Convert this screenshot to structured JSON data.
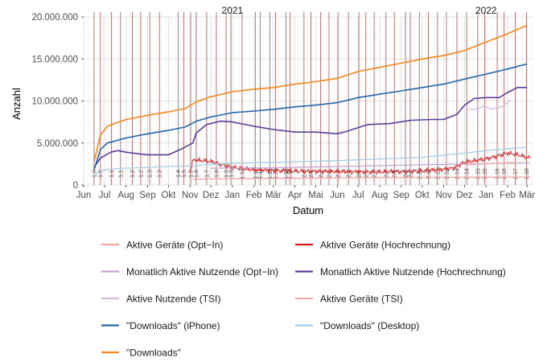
{
  "chart_data": {
    "type": "line",
    "xlabel": "Datum",
    "ylabel": "Anzahl",
    "ylim": [
      0,
      20000000
    ],
    "y_ticks": [
      0,
      5000000,
      10000000,
      15000000,
      20000000
    ],
    "y_tick_labels": [
      "0",
      "5.000.000",
      "10.000.000",
      "15.000.000",
      "20.000.000"
    ],
    "x_range": [
      "2020-06-01",
      "2022-03-10"
    ],
    "x_ticks": [
      {
        "date": "2020-06-01",
        "label": "Jun"
      },
      {
        "date": "2020-07-01",
        "label": "Jul"
      },
      {
        "date": "2020-08-01",
        "label": "Aug"
      },
      {
        "date": "2020-09-01",
        "label": "Sep"
      },
      {
        "date": "2020-10-01",
        "label": "Okt"
      },
      {
        "date": "2020-11-01",
        "label": "Nov"
      },
      {
        "date": "2020-12-01",
        "label": "Dez"
      },
      {
        "date": "2021-01-01",
        "label": "Jan"
      },
      {
        "date": "2021-02-01",
        "label": "Feb"
      },
      {
        "date": "2021-03-01",
        "label": "Mär"
      },
      {
        "date": "2021-04-01",
        "label": "Apr"
      },
      {
        "date": "2021-05-01",
        "label": "Mai"
      },
      {
        "date": "2021-06-01",
        "label": "Jun"
      },
      {
        "date": "2021-07-01",
        "label": "Jul"
      },
      {
        "date": "2021-08-01",
        "label": "Aug"
      },
      {
        "date": "2021-09-01",
        "label": "Sep"
      },
      {
        "date": "2021-10-01",
        "label": "Okt"
      },
      {
        "date": "2021-11-01",
        "label": "Nov"
      },
      {
        "date": "2021-12-01",
        "label": "Dez"
      },
      {
        "date": "2022-01-01",
        "label": "Jan"
      },
      {
        "date": "2022-02-01",
        "label": "Feb"
      },
      {
        "date": "2022-03-01",
        "label": "Mär"
      }
    ],
    "year_labels": [
      {
        "date": "2021-01-01",
        "label": "2021"
      },
      {
        "date": "2022-01-01",
        "label": "2022"
      }
    ],
    "grid": true,
    "legend_position": "bottom",
    "release_markers": [
      {
        "date": "2020-06-16",
        "label": "1.0"
      },
      {
        "date": "2020-06-25",
        "label": "1.0"
      },
      {
        "date": "2020-07-11",
        "label": "1.1"
      },
      {
        "date": "2020-07-24",
        "label": "1.1"
      },
      {
        "date": "2020-08-10",
        "label": "1.2"
      },
      {
        "date": "2020-08-22",
        "label": "1.2"
      },
      {
        "date": "2020-09-04",
        "label": "1.3"
      },
      {
        "date": "2020-09-18",
        "label": "1.3"
      },
      {
        "date": "2020-10-15",
        "label": "1.4"
      },
      {
        "date": "2020-10-23",
        "label": "1.5"
      },
      {
        "date": "2020-11-02",
        "label": "1.5"
      },
      {
        "date": "2020-11-10",
        "label": "1.6"
      },
      {
        "date": "2020-11-25",
        "label": "1.7"
      },
      {
        "date": "2020-12-09",
        "label": "1.8"
      },
      {
        "date": "2020-12-23",
        "label": "1.9"
      },
      {
        "date": "2020-12-30",
        "label": "1.9"
      },
      {
        "date": "2021-01-15",
        "label": "1.10"
      },
      {
        "date": "2021-02-03",
        "label": "1.11"
      },
      {
        "date": "2021-02-10",
        "label": "1.11"
      },
      {
        "date": "2021-02-24",
        "label": "1.12"
      },
      {
        "date": "2021-03-04",
        "label": "1.13"
      },
      {
        "date": "2021-03-19",
        "label": "1.14"
      },
      {
        "date": "2021-03-25",
        "label": "1.15"
      },
      {
        "date": "2021-04-14",
        "label": "2.0"
      },
      {
        "date": "2021-04-24",
        "label": "2.1"
      },
      {
        "date": "2021-05-08",
        "label": "2.2"
      },
      {
        "date": "2021-05-20",
        "label": "2.2"
      },
      {
        "date": "2021-06-02",
        "label": "2.3"
      },
      {
        "date": "2021-06-17",
        "label": "2.4"
      },
      {
        "date": "2021-07-02",
        "label": "2.4"
      },
      {
        "date": "2021-07-12",
        "label": "2.5"
      },
      {
        "date": "2021-07-24",
        "label": "2.6"
      },
      {
        "date": "2021-08-10",
        "label": "2.7"
      },
      {
        "date": "2021-08-22",
        "label": "2.8"
      },
      {
        "date": "2021-09-07",
        "label": "2.9"
      },
      {
        "date": "2021-09-14",
        "label": "2.9"
      },
      {
        "date": "2021-09-27",
        "label": "2.10"
      },
      {
        "date": "2021-10-10",
        "label": "2.11"
      },
      {
        "date": "2021-10-23",
        "label": "2.12"
      },
      {
        "date": "2021-11-05",
        "label": "2.13"
      },
      {
        "date": "2021-11-20",
        "label": "2.14"
      },
      {
        "date": "2021-12-04",
        "label": "2.14"
      },
      {
        "date": "2021-12-20",
        "label": "2.15"
      },
      {
        "date": "2021-12-30",
        "label": "2.15"
      },
      {
        "date": "2022-01-17",
        "label": "2.16"
      },
      {
        "date": "2022-01-27",
        "label": "2.16"
      },
      {
        "date": "2022-02-12",
        "label": "2.17"
      },
      {
        "date": "2022-02-28",
        "label": "2.18"
      }
    ],
    "series": [
      {
        "name": "Aktive Geräte (Opt−In)",
        "color": "#f4a3a8",
        "legend_col": 0,
        "legend_row": 0,
        "points": [
          [
            "2020-11-05",
            700000
          ],
          [
            "2021-01-01",
            750000
          ],
          [
            "2021-06-01",
            850000
          ],
          [
            "2021-10-01",
            900000
          ],
          [
            "2022-03-05",
            950000
          ]
        ]
      },
      {
        "name": "Aktive Geräte (Hochrechnung)",
        "color": "#d7191c",
        "legend_col": 1,
        "legend_row": 0,
        "noise": true,
        "points": [
          [
            "2020-11-01",
            1700000
          ],
          [
            "2020-11-06",
            3000000
          ],
          [
            "2020-12-01",
            2800000
          ],
          [
            "2021-01-01",
            2100000
          ],
          [
            "2021-02-01",
            1800000
          ],
          [
            "2021-04-01",
            1650000
          ],
          [
            "2021-06-01",
            1600000
          ],
          [
            "2021-08-01",
            1550000
          ],
          [
            "2021-10-01",
            1650000
          ],
          [
            "2021-11-15",
            2000000
          ],
          [
            "2021-12-01",
            2700000
          ],
          [
            "2022-01-01",
            3100000
          ],
          [
            "2022-02-01",
            3800000
          ],
          [
            "2022-02-15",
            3600000
          ],
          [
            "2022-03-05",
            3200000
          ]
        ]
      },
      {
        "name": "Monatlich Aktive Nutzende (Opt−In)",
        "color": "#c2a5cf",
        "legend_col": 0,
        "legend_row": 1,
        "points": [
          [
            "2020-12-01",
            2000000
          ],
          [
            "2021-03-01",
            2050000
          ],
          [
            "2021-06-01",
            2200000
          ],
          [
            "2021-09-01",
            2350000
          ],
          [
            "2021-12-01",
            2500000
          ],
          [
            "2022-03-05",
            2650000
          ]
        ]
      },
      {
        "name": "Monatlich Aktive Nutzende (Hochrechnung)",
        "color": "#5e3c99",
        "legend_col": 1,
        "legend_row": 1,
        "points": [
          [
            "2020-06-16",
            2100000
          ],
          [
            "2020-06-25",
            3200000
          ],
          [
            "2020-07-10",
            3900000
          ],
          [
            "2020-07-20",
            4100000
          ],
          [
            "2020-08-01",
            3900000
          ],
          [
            "2020-08-20",
            3700000
          ],
          [
            "2020-09-01",
            3600000
          ],
          [
            "2020-10-01",
            3600000
          ],
          [
            "2020-10-20",
            4300000
          ],
          [
            "2020-11-05",
            5000000
          ],
          [
            "2020-11-10",
            6200000
          ],
          [
            "2020-11-25",
            7200000
          ],
          [
            "2020-12-15",
            7600000
          ],
          [
            "2021-01-01",
            7500000
          ],
          [
            "2021-02-01",
            7000000
          ],
          [
            "2021-03-01",
            6600000
          ],
          [
            "2021-04-01",
            6300000
          ],
          [
            "2021-05-01",
            6300000
          ],
          [
            "2021-06-01",
            6100000
          ],
          [
            "2021-06-15",
            6400000
          ],
          [
            "2021-07-15",
            7200000
          ],
          [
            "2021-08-15",
            7300000
          ],
          [
            "2021-09-15",
            7700000
          ],
          [
            "2021-10-15",
            7800000
          ],
          [
            "2021-11-01",
            7800000
          ],
          [
            "2021-11-20",
            8400000
          ],
          [
            "2021-12-01",
            9500000
          ],
          [
            "2021-12-15",
            10300000
          ],
          [
            "2022-01-01",
            10400000
          ],
          [
            "2022-01-20",
            10400000
          ],
          [
            "2022-02-01",
            11000000
          ],
          [
            "2022-02-15",
            11600000
          ],
          [
            "2022-03-01",
            11600000
          ]
        ]
      },
      {
        "name": "Aktive Nutzende (TSI)",
        "color": "#d8b8e0",
        "legend_col": 0,
        "legend_row": 2,
        "points": [
          [
            "2021-12-05",
            9000000
          ],
          [
            "2021-12-20",
            9000000
          ],
          [
            "2021-12-28",
            9400000
          ],
          [
            "2022-01-10",
            9000000
          ],
          [
            "2022-01-25",
            9400000
          ],
          [
            "2022-02-05",
            10100000
          ]
        ]
      },
      {
        "name": "Aktive Geräte (TSI)",
        "color": "#f6a9a9",
        "legend_col": 1,
        "legend_row": 2,
        "points": [
          [
            "2021-12-05",
            2400000
          ],
          [
            "2021-12-25",
            2500000
          ],
          [
            "2022-01-20",
            2600000
          ],
          [
            "2022-02-10",
            2700000
          ]
        ]
      },
      {
        "name": "\"Downloads\" (iPhone)",
        "color": "#2166ac",
        "legend_col": 0,
        "legend_row": 3,
        "points": [
          [
            "2020-06-16",
            1800000
          ],
          [
            "2020-06-25",
            4200000
          ],
          [
            "2020-07-05",
            5000000
          ],
          [
            "2020-08-01",
            5600000
          ],
          [
            "2020-09-01",
            6100000
          ],
          [
            "2020-10-01",
            6500000
          ],
          [
            "2020-10-25",
            6900000
          ],
          [
            "2020-11-10",
            7600000
          ],
          [
            "2020-12-01",
            8100000
          ],
          [
            "2021-01-01",
            8600000
          ],
          [
            "2021-02-01",
            8800000
          ],
          [
            "2021-03-01",
            9000000
          ],
          [
            "2021-04-01",
            9300000
          ],
          [
            "2021-05-01",
            9500000
          ],
          [
            "2021-06-01",
            9800000
          ],
          [
            "2021-07-01",
            10400000
          ],
          [
            "2021-08-01",
            10800000
          ],
          [
            "2021-09-01",
            11200000
          ],
          [
            "2021-10-01",
            11600000
          ],
          [
            "2021-11-01",
            12000000
          ],
          [
            "2021-12-01",
            12600000
          ],
          [
            "2022-01-01",
            13200000
          ],
          [
            "2022-02-01",
            13800000
          ],
          [
            "2022-03-01",
            14400000
          ]
        ]
      },
      {
        "name": "\"Downloads\" (Desktop)",
        "color": "#a6cee3",
        "legend_col": 1,
        "legend_row": 3,
        "points": [
          [
            "2020-06-16",
            1000000
          ],
          [
            "2020-06-25",
            1700000
          ],
          [
            "2020-07-10",
            1900000
          ],
          [
            "2020-08-01",
            2000000
          ],
          [
            "2020-09-01",
            2100000
          ],
          [
            "2020-10-01",
            2200000
          ],
          [
            "2020-11-10",
            2300000
          ],
          [
            "2020-12-01",
            2500000
          ],
          [
            "2021-01-01",
            2600000
          ],
          [
            "2021-03-01",
            2700000
          ],
          [
            "2021-06-01",
            2900000
          ],
          [
            "2021-08-01",
            3100000
          ],
          [
            "2021-10-01",
            3300000
          ],
          [
            "2021-12-01",
            3800000
          ],
          [
            "2022-01-01",
            4100000
          ],
          [
            "2022-03-01",
            4500000
          ]
        ]
      },
      {
        "name": "\"Downloads\"",
        "color": "#f58518",
        "legend_col": 0,
        "legend_row": 4,
        "points": [
          [
            "2020-06-16",
            2800000
          ],
          [
            "2020-06-25",
            5900000
          ],
          [
            "2020-07-05",
            7000000
          ],
          [
            "2020-08-01",
            7800000
          ],
          [
            "2020-09-01",
            8300000
          ],
          [
            "2020-10-01",
            8700000
          ],
          [
            "2020-10-25",
            9100000
          ],
          [
            "2020-11-10",
            9900000
          ],
          [
            "2020-12-01",
            10500000
          ],
          [
            "2021-01-01",
            11100000
          ],
          [
            "2021-02-01",
            11400000
          ],
          [
            "2021-03-01",
            11600000
          ],
          [
            "2021-04-01",
            12000000
          ],
          [
            "2021-05-01",
            12300000
          ],
          [
            "2021-06-01",
            12700000
          ],
          [
            "2021-07-01",
            13500000
          ],
          [
            "2021-08-01",
            14000000
          ],
          [
            "2021-09-01",
            14500000
          ],
          [
            "2021-10-01",
            15000000
          ],
          [
            "2021-11-01",
            15400000
          ],
          [
            "2021-12-01",
            16000000
          ],
          [
            "2022-01-01",
            17000000
          ],
          [
            "2022-02-01",
            18000000
          ],
          [
            "2022-03-01",
            19000000
          ]
        ]
      }
    ]
  }
}
